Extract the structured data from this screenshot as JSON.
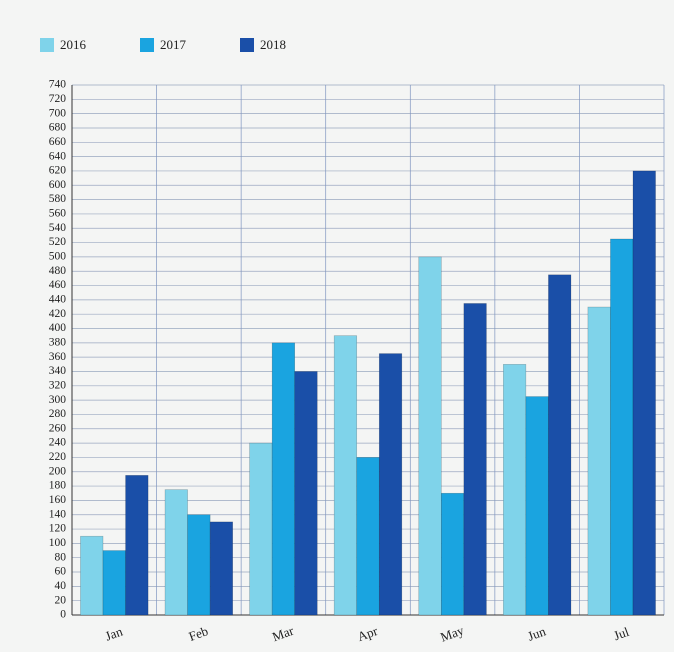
{
  "chart_data": {
    "type": "bar",
    "categories": [
      "Jan",
      "Feb",
      "Mar",
      "Apr",
      "May",
      "Jun",
      "Jul"
    ],
    "series": [
      {
        "name": "2016",
        "color": "#7fd3ea",
        "values": [
          110,
          175,
          240,
          390,
          500,
          350,
          430
        ]
      },
      {
        "name": "2017",
        "color": "#1aa4e0",
        "values": [
          90,
          140,
          380,
          220,
          170,
          305,
          525
        ]
      },
      {
        "name": "2018",
        "color": "#1a4fa8",
        "values": [
          195,
          130,
          340,
          365,
          435,
          475,
          620
        ]
      }
    ],
    "ylim": [
      0,
      740
    ],
    "yticks": [
      0,
      20,
      40,
      60,
      80,
      100,
      120,
      140,
      160,
      180,
      200,
      220,
      240,
      260,
      280,
      300,
      320,
      340,
      360,
      380,
      400,
      420,
      440,
      460,
      480,
      500,
      520,
      540,
      560,
      580,
      600,
      620,
      640,
      660,
      680,
      700,
      720,
      740
    ],
    "grid": true,
    "legend": "top-left"
  }
}
